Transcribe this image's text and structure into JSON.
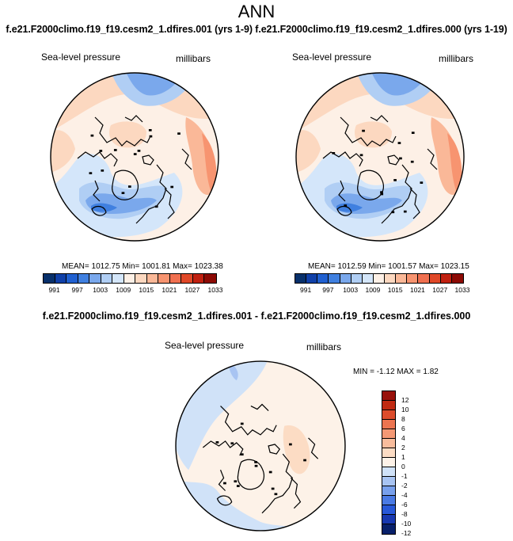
{
  "title": "ANN",
  "header": "f.e21.F2000climo.f19_f19.cesm2_1.dfires.001 (yrs 1-9) f.e21.F2000climo.f19_f19.cesm2_1.dfires.000 (yrs 1-19)",
  "diff_header": "f.e21.F2000climo.f19_f19.cesm2_1.dfires.001 - f.e21.F2000climo.f19_f19.cesm2_1.dfires.000",
  "panels": [
    {
      "variable": "Sea-level pressure",
      "units": "millibars",
      "stats": "MEAN= 1012.75  Min= 1001.81  Max= 1023.38"
    },
    {
      "variable": "Sea-level pressure",
      "units": "millibars",
      "stats": "MEAN= 1012.59  Min= 1001.57  Max= 1023.15"
    },
    {
      "variable": "Sea-level pressure",
      "units": "millibars",
      "stats": "MIN = -1.12 MAX =  1.82"
    }
  ],
  "colorbar_abs": {
    "colors": [
      "#08306b",
      "#1040a8",
      "#2060d0",
      "#4080e0",
      "#7aa8ec",
      "#b0cef4",
      "#d4e6fa",
      "#fdf0e6",
      "#fcd8c0",
      "#fab898",
      "#f79470",
      "#f07050",
      "#e04828",
      "#c02010",
      "#8c0a04"
    ],
    "tick_labels": [
      "991",
      "997",
      "1003",
      "1009",
      "1015",
      "1021",
      "1027",
      "1033"
    ]
  },
  "colorbar_diff": {
    "colors": [
      "#08206a",
      "#1838b0",
      "#2858d8",
      "#4a7ae4",
      "#78a0ec",
      "#a8c4f2",
      "#d0e2f8",
      "#fdf2e8",
      "#fcdcc4",
      "#f8bc9c",
      "#f49874",
      "#ec7450",
      "#dc4c2c",
      "#c02a12",
      "#98100a"
    ],
    "tick_labels": [
      "12",
      "10",
      "8",
      "6",
      "4",
      "2",
      "1",
      "0",
      "-1",
      "-2",
      "-4",
      "-6",
      "-8",
      "-10",
      "-12"
    ]
  }
}
